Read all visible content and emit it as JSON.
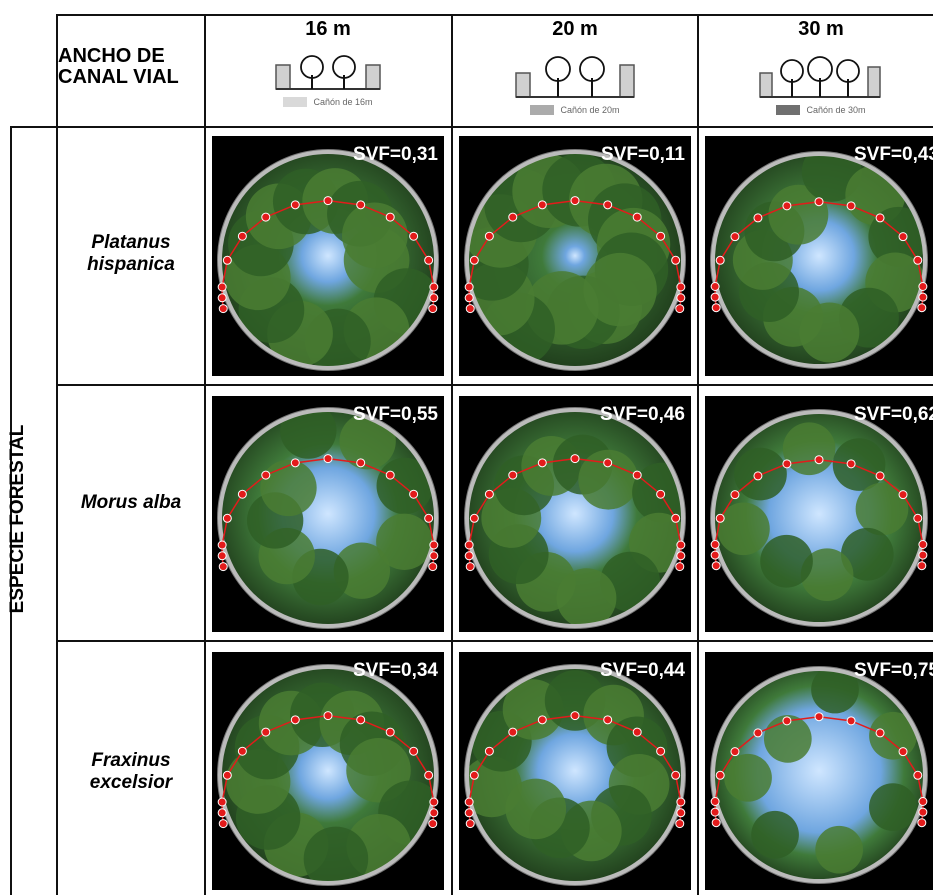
{
  "header": {
    "row_label": "ANCHO DE CANAL VIAL",
    "columns": [
      {
        "title": "16 m",
        "legend": "Cañón de 16m",
        "color": "#d9d9d9"
      },
      {
        "title": "20 m",
        "legend": "Cañón de 20m",
        "color": "#ababab"
      },
      {
        "title": "30 m",
        "legend": "Cañón de 30m",
        "color": "#707070"
      }
    ]
  },
  "side_label": "ESPECIE FORESTAL",
  "rows": [
    {
      "species": "Platanus hispanica",
      "svf": [
        "SVF=0,31",
        "SVF=0,11",
        "SVF=0,43"
      ],
      "sky": [
        0.31,
        0.11,
        0.43
      ]
    },
    {
      "species": "Morus alba",
      "svf": [
        "SVF=0,55",
        "SVF=0,46",
        "SVF=0,62"
      ],
      "sky": [
        0.55,
        0.46,
        0.62
      ]
    },
    {
      "species": "Fraxinus excelsior",
      "svf": [
        "SVF=0,34",
        "SVF=0,44",
        "SVF=0,75"
      ],
      "sky": [
        0.34,
        0.44,
        0.75
      ]
    }
  ]
}
